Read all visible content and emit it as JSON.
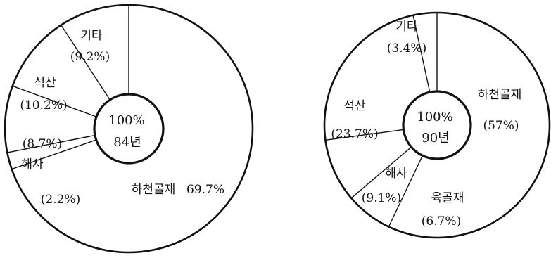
{
  "chart_data": [
    {
      "type": "pie",
      "center_label": {
        "line1": "100%",
        "line2": "84년"
      },
      "slices": [
        {
          "name": "하천골재",
          "value": 69.7,
          "value_label": "69.7%"
        },
        {
          "name": "",
          "value": 2.2,
          "value_label": "(2.2%)"
        },
        {
          "name": "해사",
          "value": 8.7,
          "value_label": "(8.7%)"
        },
        {
          "name": "석산",
          "value": 10.2,
          "value_label": "(10.2%)"
        },
        {
          "name": "기타",
          "value": 9.2,
          "value_label": "(9.2%)"
        }
      ]
    },
    {
      "type": "pie",
      "center_label": {
        "line1": "100%",
        "line2": "90년"
      },
      "slices": [
        {
          "name": "하천골재",
          "value": 57,
          "value_label": "(57%)"
        },
        {
          "name": "육골재",
          "value": 6.7,
          "value_label": "(6.7%)"
        },
        {
          "name": "해사",
          "value": 9.1,
          "value_label": "(9.1%)"
        },
        {
          "name": "석산",
          "value": 23.7,
          "value_label": "(23.7%)"
        },
        {
          "name": "기타",
          "value": 3.4,
          "value_label": "(3.4%)"
        }
      ]
    }
  ]
}
